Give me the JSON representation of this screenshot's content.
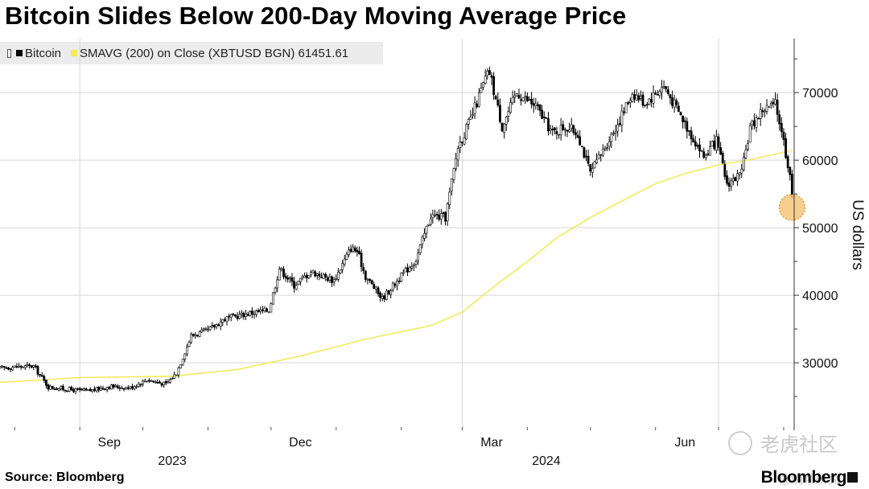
{
  "chart_data": {
    "type": "candlestick",
    "title": "Bitcoin Slides Below 200-Day Moving Average Price",
    "legend": [
      {
        "label": "Bitcoin",
        "color": "#000000"
      },
      {
        "label": "SMAVG (200)  on Close (XBTUSD BGN) 61451.61",
        "color": "#f4ea5e"
      }
    ],
    "ylabel": "US dollars",
    "ylim": [
      20000,
      78000
    ],
    "yticks": [
      "30000",
      "40000",
      "50000",
      "60000",
      "70000"
    ],
    "month_labels": [
      "Sep",
      "Dec",
      "Mar",
      "Jun"
    ],
    "year_labels": [
      "2023",
      "2024"
    ],
    "source": "Source: Bloomberg",
    "x_start": "2023-07-25",
    "x_end": "2024-08-06",
    "bitcoin_close_points": [
      [
        "2023-07-25",
        29200
      ],
      [
        "2023-08-01",
        29400
      ],
      [
        "2023-08-10",
        29500
      ],
      [
        "2023-08-17",
        26400
      ],
      [
        "2023-08-28",
        26000
      ],
      [
        "2023-09-05",
        25800
      ],
      [
        "2023-09-15",
        26500
      ],
      [
        "2023-09-25",
        26300
      ],
      [
        "2023-10-03",
        27500
      ],
      [
        "2023-10-12",
        26800
      ],
      [
        "2023-10-17",
        28500
      ],
      [
        "2023-10-24",
        34000
      ],
      [
        "2023-11-01",
        34800
      ],
      [
        "2023-11-09",
        36500
      ],
      [
        "2023-11-20",
        37300
      ],
      [
        "2023-11-30",
        37800
      ],
      [
        "2023-12-05",
        44000
      ],
      [
        "2023-12-12",
        41500
      ],
      [
        "2023-12-20",
        43500
      ],
      [
        "2023-12-31",
        42200
      ],
      [
        "2024-01-08",
        47000
      ],
      [
        "2024-01-11",
        46500
      ],
      [
        "2024-01-15",
        42800
      ],
      [
        "2024-01-23",
        39500
      ],
      [
        "2024-01-31",
        42500
      ],
      [
        "2024-02-08",
        45300
      ],
      [
        "2024-02-15",
        51800
      ],
      [
        "2024-02-22",
        51500
      ],
      [
        "2024-02-28",
        62000
      ],
      [
        "2024-03-05",
        66000
      ],
      [
        "2024-03-12",
        72000
      ],
      [
        "2024-03-14",
        73000
      ],
      [
        "2024-03-20",
        65000
      ],
      [
        "2024-03-27",
        70000
      ],
      [
        "2024-04-05",
        68000
      ],
      [
        "2024-04-13",
        64000
      ],
      [
        "2024-04-19",
        65000
      ],
      [
        "2024-04-25",
        64000
      ],
      [
        "2024-05-01",
        58000
      ],
      [
        "2024-05-08",
        62000
      ],
      [
        "2024-05-15",
        66000
      ],
      [
        "2024-05-21",
        70000
      ],
      [
        "2024-05-27",
        68500
      ],
      [
        "2024-06-05",
        71000
      ],
      [
        "2024-06-14",
        66000
      ],
      [
        "2024-06-24",
        60500
      ],
      [
        "2024-06-30",
        62800
      ],
      [
        "2024-07-05",
        56500
      ],
      [
        "2024-07-12",
        58000
      ],
      [
        "2024-07-16",
        64800
      ],
      [
        "2024-07-22",
        67500
      ],
      [
        "2024-07-28",
        68200
      ],
      [
        "2024-07-31",
        64600
      ],
      [
        "2024-08-02",
        61000
      ],
      [
        "2024-08-04",
        58000
      ],
      [
        "2024-08-05",
        54000
      ]
    ],
    "sma200_points": [
      [
        "2023-07-25",
        27100
      ],
      [
        "2023-09-01",
        27800
      ],
      [
        "2023-10-15",
        28000
      ],
      [
        "2023-11-15",
        29000
      ],
      [
        "2023-12-15",
        31000
      ],
      [
        "2024-01-15",
        33500
      ],
      [
        "2024-02-15",
        35500
      ],
      [
        "2024-03-01",
        37500
      ],
      [
        "2024-03-15",
        41000
      ],
      [
        "2024-04-01",
        45000
      ],
      [
        "2024-04-15",
        48500
      ],
      [
        "2024-05-01",
        51500
      ],
      [
        "2024-05-15",
        53800
      ],
      [
        "2024-06-01",
        56500
      ],
      [
        "2024-06-15",
        58000
      ],
      [
        "2024-07-01",
        59300
      ],
      [
        "2024-07-15",
        60000
      ],
      [
        "2024-08-05",
        61450
      ]
    ],
    "highlight_point": [
      "2024-08-05",
      53000
    ]
  },
  "colors": {
    "candle": "#000000",
    "sma": "#f4ea5e",
    "highlight_fill": "#f5c77c",
    "highlight_stroke": "#e0a040",
    "grid": "#d6d6d6"
  },
  "watermark": {
    "primary": "老虎社区",
    "secondary": "@明晰研究"
  },
  "brand": "Bloomberg"
}
